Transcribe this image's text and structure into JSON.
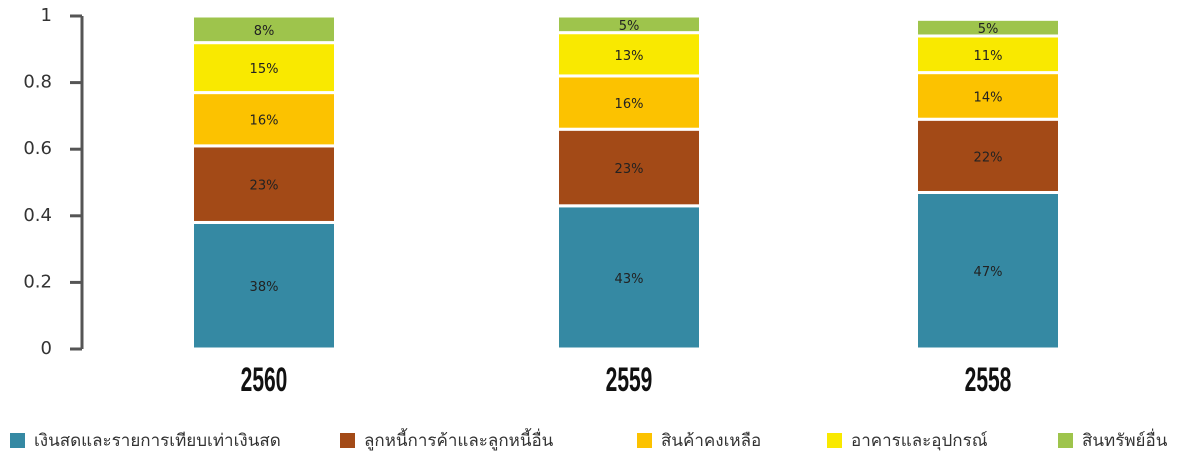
{
  "chart_data": {
    "type": "stacked_bar",
    "categories": [
      "2560",
      "2559",
      "2558"
    ],
    "series": [
      {
        "name": "เงินสดและรายการเทียบเท่าเงินสด",
        "color": "#3589a3",
        "values": [
          0.38,
          0.43,
          0.47
        ],
        "value_labels": [
          "38%",
          "43%",
          "47%"
        ]
      },
      {
        "name": "ลูกหนี้การค้าและลูกหนี้อื่น",
        "color": "#a34a17",
        "values": [
          0.23,
          0.23,
          0.22
        ],
        "value_labels": [
          "23%",
          "23%",
          "22%"
        ]
      },
      {
        "name": "สินค้าคงเหลือ",
        "color": "#fcc200",
        "values": [
          0.16,
          0.16,
          0.14
        ],
        "value_labels": [
          "16%",
          "16%",
          "14%"
        ]
      },
      {
        "name": "อาคารและอุปกรณ์",
        "color": "#f9e900",
        "values": [
          0.15,
          0.13,
          0.11
        ],
        "value_labels": [
          "15%",
          "13%",
          "11%"
        ]
      },
      {
        "name": "สินทรัพย์อื่น",
        "color": "#9ec44c",
        "values": [
          0.08,
          0.05,
          0.05
        ],
        "value_labels": [
          "8%",
          "5%",
          "5%"
        ]
      }
    ],
    "ylim": [
      0,
      1
    ],
    "yticks": [
      0,
      0.2,
      0.4,
      0.6,
      0.8,
      1
    ],
    "legend": "bottom"
  }
}
